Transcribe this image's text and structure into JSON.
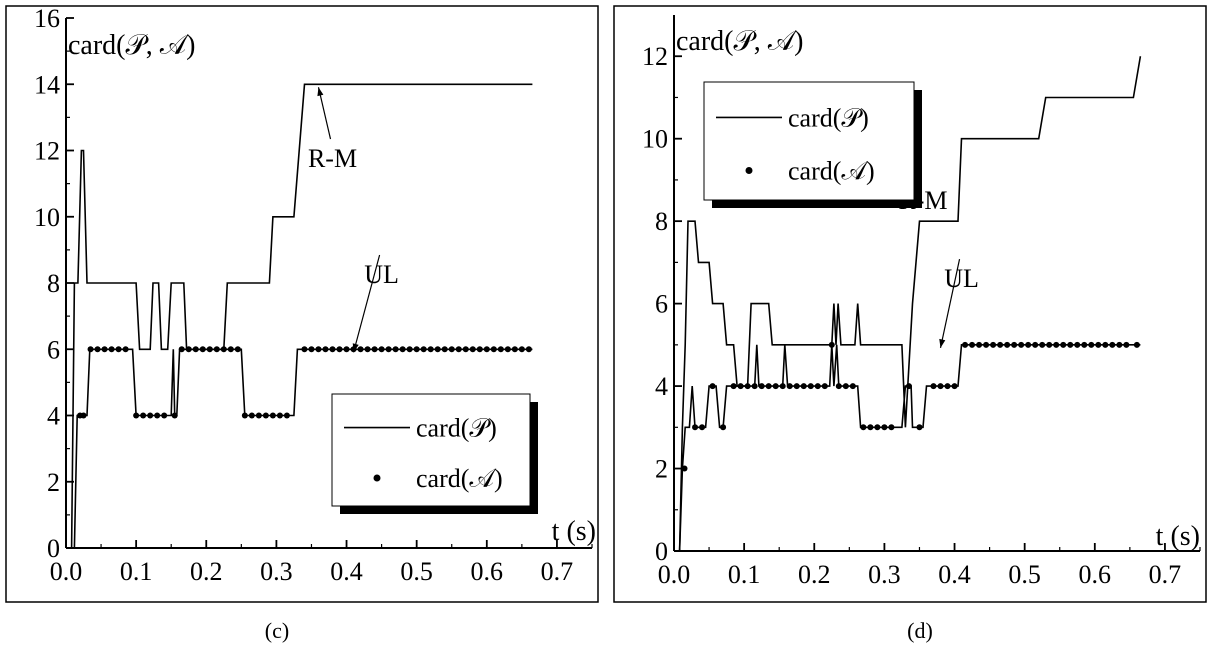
{
  "chart_data": [
    {
      "type": "line",
      "panel_label": "(c)",
      "ylabel": "card(𝒫, 𝒜)",
      "xlabel": "t (s)",
      "xlim": [
        0,
        0.75
      ],
      "ylim": [
        0,
        16
      ],
      "x_ticks": [
        "0.0",
        "0.1",
        "0.2",
        "0.3",
        "0.4",
        "0.5",
        "0.6",
        "0.7"
      ],
      "y_ticks": [
        "0",
        "2",
        "4",
        "6",
        "8",
        "10",
        "12",
        "14",
        "16"
      ],
      "legend_position": "bottom-right",
      "series": [
        {
          "name": "card(𝒫)",
          "style": "line",
          "points": [
            [
              0,
              0
            ],
            [
              0.008,
              0
            ],
            [
              0.012,
              8
            ],
            [
              0.017,
              8
            ],
            [
              0.022,
              12
            ],
            [
              0.025,
              12
            ],
            [
              0.03,
              8
            ],
            [
              0.1,
              8
            ],
            [
              0.105,
              6
            ],
            [
              0.12,
              6
            ],
            [
              0.124,
              8
            ],
            [
              0.132,
              8
            ],
            [
              0.136,
              6
            ],
            [
              0.145,
              6
            ],
            [
              0.15,
              8
            ],
            [
              0.168,
              8
            ],
            [
              0.172,
              6
            ],
            [
              0.225,
              6
            ],
            [
              0.23,
              8
            ],
            [
              0.29,
              8
            ],
            [
              0.295,
              10
            ],
            [
              0.325,
              10
            ],
            [
              0.34,
              14
            ],
            [
              0.665,
              14
            ]
          ]
        },
        {
          "name": "card(𝒜)",
          "style": "line+dots",
          "points": [
            [
              0,
              0
            ],
            [
              0.012,
              0
            ],
            [
              0.016,
              4
            ],
            [
              0.03,
              4
            ],
            [
              0.034,
              6
            ],
            [
              0.095,
              6
            ],
            [
              0.1,
              4
            ],
            [
              0.15,
              4
            ],
            [
              0.153,
              6
            ],
            [
              0.155,
              4
            ],
            [
              0.158,
              4
            ],
            [
              0.162,
              6
            ],
            [
              0.25,
              6
            ],
            [
              0.255,
              4
            ],
            [
              0.325,
              4
            ],
            [
              0.33,
              6
            ],
            [
              0.665,
              6
            ]
          ],
          "dots_x": [
            0.02,
            0.025,
            0.035,
            0.045,
            0.055,
            0.065,
            0.075,
            0.085,
            0.1,
            0.11,
            0.12,
            0.13,
            0.14,
            0.155,
            0.165,
            0.175,
            0.185,
            0.195,
            0.205,
            0.215,
            0.225,
            0.235,
            0.245,
            0.255,
            0.265,
            0.275,
            0.285,
            0.295,
            0.305,
            0.315,
            0.34,
            0.35,
            0.36,
            0.37,
            0.38,
            0.39,
            0.4,
            0.41,
            0.42,
            0.43,
            0.44,
            0.45,
            0.46,
            0.47,
            0.48,
            0.49,
            0.5,
            0.51,
            0.52,
            0.53,
            0.54,
            0.55,
            0.56,
            0.57,
            0.58,
            0.59,
            0.6,
            0.61,
            0.62,
            0.63,
            0.64,
            0.65,
            0.66
          ]
        }
      ],
      "annotations": [
        {
          "text": "R-M",
          "text_pos": [
            0.38,
            11.5
          ],
          "target": [
            0.36,
            14
          ]
        },
        {
          "text": "UL",
          "text_pos": [
            0.45,
            8.0
          ],
          "target": [
            0.41,
            6
          ]
        }
      ]
    },
    {
      "type": "line",
      "panel_label": "(d)",
      "ylabel": "card(𝒫, 𝒜)",
      "xlabel": "t (s)",
      "xlim": [
        0,
        0.75
      ],
      "ylim": [
        0,
        13
      ],
      "x_ticks": [
        "0.0",
        "0.1",
        "0.2",
        "0.3",
        "0.4",
        "0.5",
        "0.6",
        "0.7"
      ],
      "y_ticks": [
        "0",
        "2",
        "4",
        "6",
        "8",
        "10",
        "12"
      ],
      "legend_position": "top-left",
      "series": [
        {
          "name": "card(𝒫)",
          "style": "line",
          "points": [
            [
              0,
              0
            ],
            [
              0.008,
              0
            ],
            [
              0.012,
              3
            ],
            [
              0.016,
              5
            ],
            [
              0.02,
              8
            ],
            [
              0.03,
              8
            ],
            [
              0.035,
              7
            ],
            [
              0.05,
              7
            ],
            [
              0.055,
              6
            ],
            [
              0.07,
              6
            ],
            [
              0.075,
              5
            ],
            [
              0.085,
              5
            ],
            [
              0.09,
              4
            ],
            [
              0.105,
              4
            ],
            [
              0.11,
              6
            ],
            [
              0.135,
              6
            ],
            [
              0.14,
              5
            ],
            [
              0.225,
              5
            ],
            [
              0.228,
              6
            ],
            [
              0.231,
              5
            ],
            [
              0.234,
              6
            ],
            [
              0.238,
              5
            ],
            [
              0.258,
              5
            ],
            [
              0.262,
              6
            ],
            [
              0.266,
              5
            ],
            [
              0.325,
              5
            ],
            [
              0.33,
              3
            ],
            [
              0.34,
              6
            ],
            [
              0.35,
              8
            ],
            [
              0.405,
              8
            ],
            [
              0.41,
              10
            ],
            [
              0.52,
              10
            ],
            [
              0.53,
              11
            ],
            [
              0.655,
              11
            ],
            [
              0.665,
              12
            ]
          ]
        },
        {
          "name": "card(𝒜)",
          "style": "line+dots",
          "points": [
            [
              0,
              0
            ],
            [
              0.008,
              0
            ],
            [
              0.012,
              2
            ],
            [
              0.016,
              3
            ],
            [
              0.022,
              3
            ],
            [
              0.026,
              4
            ],
            [
              0.03,
              3
            ],
            [
              0.045,
              3
            ],
            [
              0.05,
              4
            ],
            [
              0.06,
              4
            ],
            [
              0.065,
              3
            ],
            [
              0.07,
              3
            ],
            [
              0.075,
              4
            ],
            [
              0.115,
              4
            ],
            [
              0.118,
              5
            ],
            [
              0.121,
              4
            ],
            [
              0.155,
              4
            ],
            [
              0.158,
              5
            ],
            [
              0.162,
              4
            ],
            [
              0.222,
              4
            ],
            [
              0.225,
              5
            ],
            [
              0.228,
              4
            ],
            [
              0.232,
              5
            ],
            [
              0.235,
              4
            ],
            [
              0.262,
              4
            ],
            [
              0.266,
              3
            ],
            [
              0.325,
              3
            ],
            [
              0.33,
              4
            ],
            [
              0.338,
              4
            ],
            [
              0.34,
              3
            ],
            [
              0.355,
              3
            ],
            [
              0.36,
              4
            ],
            [
              0.405,
              4
            ],
            [
              0.41,
              5
            ],
            [
              0.665,
              5
            ]
          ],
          "dots_x": [
            0.015,
            0.03,
            0.04,
            0.055,
            0.07,
            0.085,
            0.095,
            0.105,
            0.115,
            0.125,
            0.135,
            0.145,
            0.155,
            0.165,
            0.175,
            0.185,
            0.195,
            0.205,
            0.215,
            0.225,
            0.235,
            0.245,
            0.255,
            0.27,
            0.28,
            0.29,
            0.3,
            0.31,
            0.335,
            0.35,
            0.37,
            0.38,
            0.39,
            0.4,
            0.415,
            0.425,
            0.435,
            0.445,
            0.455,
            0.465,
            0.475,
            0.485,
            0.495,
            0.505,
            0.515,
            0.525,
            0.535,
            0.545,
            0.555,
            0.565,
            0.575,
            0.585,
            0.595,
            0.605,
            0.615,
            0.625,
            0.635,
            0.645,
            0.66
          ]
        }
      ],
      "annotations": [
        {
          "text": "R-M",
          "text_pos": [
            0.355,
            8.3
          ],
          "target": [
            0.33,
            10
          ]
        },
        {
          "text": "UL",
          "text_pos": [
            0.41,
            6.4
          ],
          "target": [
            0.38,
            5
          ]
        }
      ]
    }
  ]
}
